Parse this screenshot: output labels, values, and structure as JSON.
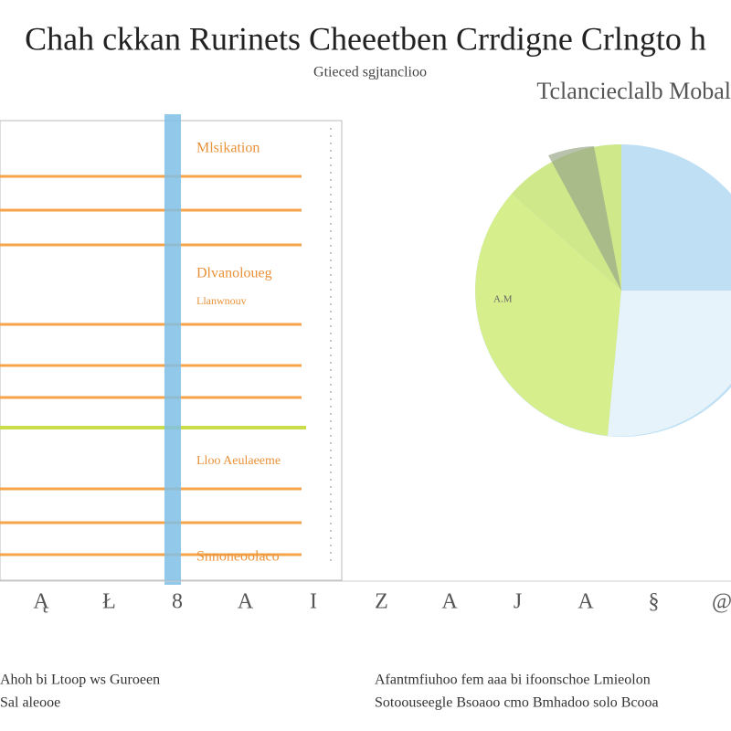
{
  "header": {
    "title": "Chah ckkan Rurinets Cheeetben Crrdigne Crlngto h",
    "subtitle": "Gtieced sgjtanclioo"
  },
  "left_panel": {
    "labels": [
      "Mlsikation",
      "Dlvanoloueg",
      "Llanwnouv",
      "Lloo Aeulaeeme",
      "Snnoneoolaco"
    ]
  },
  "right_panel": {
    "title": "Tclancieclalb Mobal",
    "pie_label": "A.M"
  },
  "axis": {
    "glyphs": [
      "Ą",
      "Ł",
      "8",
      "A",
      "I",
      "Z",
      "A",
      "J",
      "A",
      "§",
      "@"
    ]
  },
  "footer": {
    "left": [
      "Ahoh bi Ltoop ws Guroeen",
      "Sal aleooe"
    ],
    "right": [
      "Afantmfiuhoo fem aaa bi ifoonschoe Lmieolon",
      "Sotoouseegle Bsoaoo cmo Bmhadoo solo Bcooa"
    ]
  }
}
